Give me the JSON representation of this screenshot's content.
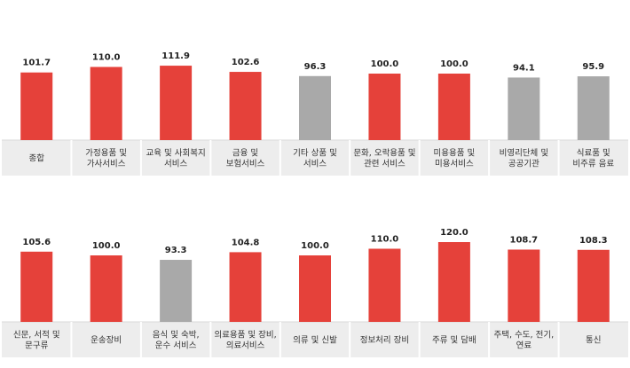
{
  "colors": {
    "red": "#e5413a",
    "gray": "#a9a9a9",
    "label_bg": "#ededed",
    "divider": "#ffffff",
    "axis": "#d9d9d9"
  },
  "chart_data": [
    {
      "type": "bar",
      "ylim": [
        0,
        160
      ],
      "categories": [
        [
          "종합"
        ],
        [
          "가정용품 및",
          "가사서비스"
        ],
        [
          "교육 및 사회복지",
          "서비스"
        ],
        [
          "금융 및",
          "보험서비스"
        ],
        [
          "기타 상품 및",
          "서비스"
        ],
        [
          "문화, 오락용품 및",
          "관련 서비스"
        ],
        [
          "미용용품 및",
          "미용서비스"
        ],
        [
          "비영리단체 및",
          "공공기관"
        ],
        [
          "식료품 및",
          "비주류 음료"
        ]
      ],
      "values": [
        101.7,
        110.0,
        111.9,
        102.6,
        96.3,
        100.0,
        100.0,
        94.1,
        95.9
      ],
      "labels": [
        "101.7",
        "110.0",
        "111.9",
        "102.6",
        "96.3",
        "100.0",
        "100.0",
        "94.1",
        "95.9"
      ],
      "bar_colors": [
        "red",
        "red",
        "red",
        "red",
        "gray",
        "red",
        "red",
        "gray",
        "gray"
      ]
    },
    {
      "type": "bar",
      "ylim": [
        0,
        160
      ],
      "categories": [
        [
          "신문, 서적 및",
          "문구류"
        ],
        [
          "운송장비"
        ],
        [
          "음식 및 숙박,",
          "운수 서비스"
        ],
        [
          "의료용품 및 장비,",
          "의료서비스"
        ],
        [
          "의류 및 신발"
        ],
        [
          "정보처리 장비"
        ],
        [
          "주류 및 담배"
        ],
        [
          "주택, 수도, 전기,",
          "연료"
        ],
        [
          "통신"
        ]
      ],
      "values": [
        105.6,
        100.0,
        93.3,
        104.8,
        100.0,
        110.0,
        120.0,
        108.7,
        108.3
      ],
      "labels": [
        "105.6",
        "100.0",
        "93.3",
        "104.8",
        "100.0",
        "110.0",
        "120.0",
        "108.7",
        "108.3"
      ],
      "bar_colors": [
        "red",
        "red",
        "gray",
        "red",
        "red",
        "red",
        "red",
        "red",
        "red"
      ]
    }
  ]
}
